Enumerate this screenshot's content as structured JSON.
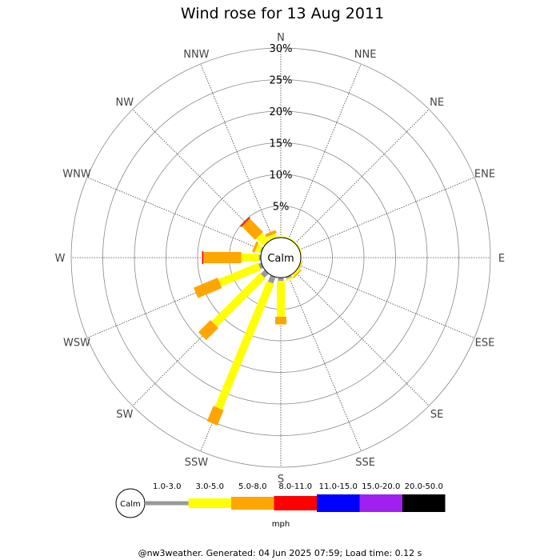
{
  "chart_data": {
    "type": "wind-rose",
    "title": "Wind rose for 13 Aug 2011",
    "directions": [
      "N",
      "NNE",
      "NE",
      "ENE",
      "E",
      "ESE",
      "SE",
      "SSE",
      "S",
      "SSW",
      "SW",
      "WSW",
      "W",
      "WNW",
      "NW",
      "NNW"
    ],
    "ring_labels": [
      "5%",
      "10%",
      "15%",
      "20%",
      "25%",
      "30%"
    ],
    "ring_values": [
      5,
      10,
      15,
      20,
      25,
      30
    ],
    "rmax": 30,
    "calm_label": "Calm",
    "unit": "mph",
    "bins": [
      {
        "label": "1.0-3.0",
        "color": "#999999"
      },
      {
        "label": "3.0-5.0",
        "color": "#ffff00"
      },
      {
        "label": "5.0-8.0",
        "color": "#ffa500"
      },
      {
        "label": "8.0-11.0",
        "color": "#ff0000"
      },
      {
        "label": "11.0-15.0",
        "color": "#0000ff"
      },
      {
        "label": "15.0-20.0",
        "color": "#a020f0"
      },
      {
        "label": "20.0-50.0",
        "color": "#000000"
      }
    ],
    "series": [
      {
        "dir": "N",
        "values": [
          0,
          0.2,
          0,
          0,
          0,
          0,
          0
        ]
      },
      {
        "dir": "NNE",
        "values": [
          0,
          0.2,
          0,
          0,
          0,
          0,
          0
        ]
      },
      {
        "dir": "NE",
        "values": [
          0,
          0.2,
          0,
          0,
          0,
          0,
          0
        ]
      },
      {
        "dir": "ENE",
        "values": [
          0,
          0.2,
          0,
          0,
          0,
          0,
          0
        ]
      },
      {
        "dir": "E",
        "values": [
          0,
          0.1,
          0,
          0,
          0,
          0,
          0
        ]
      },
      {
        "dir": "ESE",
        "values": [
          0,
          0.2,
          0.1,
          0,
          0,
          0,
          0
        ]
      },
      {
        "dir": "SE",
        "values": [
          0,
          0.4,
          0.2,
          0,
          0,
          0,
          0
        ]
      },
      {
        "dir": "SSE",
        "values": [
          0.3,
          0.3,
          0,
          0,
          0,
          0,
          0
        ]
      },
      {
        "dir": "S",
        "values": [
          0.5,
          5.7,
          1.2,
          0,
          0,
          0,
          0
        ]
      },
      {
        "dir": "SSW",
        "values": [
          1.1,
          21.5,
          2.6,
          0,
          0,
          0,
          0
        ]
      },
      {
        "dir": "SW",
        "values": [
          0.9,
          10.8,
          2.7,
          0,
          0,
          0,
          0
        ]
      },
      {
        "dir": "WSW",
        "values": [
          0.5,
          6.8,
          4.1,
          0,
          0,
          0,
          0
        ]
      },
      {
        "dir": "W",
        "values": [
          0.3,
          2.8,
          6.0,
          0.2,
          0,
          0,
          0
        ]
      },
      {
        "dir": "WNW",
        "values": [
          0.2,
          0.8,
          0.4,
          0,
          0,
          0,
          0
        ]
      },
      {
        "dir": "NW",
        "values": [
          0.1,
          1.6,
          3.0,
          0.2,
          0,
          0,
          0
        ]
      },
      {
        "dir": "NNW",
        "values": [
          0.1,
          0.6,
          0.5,
          0,
          0,
          0,
          0
        ]
      }
    ],
    "footer": "@nw3weather. Generated: 04 Jun 2025 07:59; Load time: 0.12 s"
  }
}
